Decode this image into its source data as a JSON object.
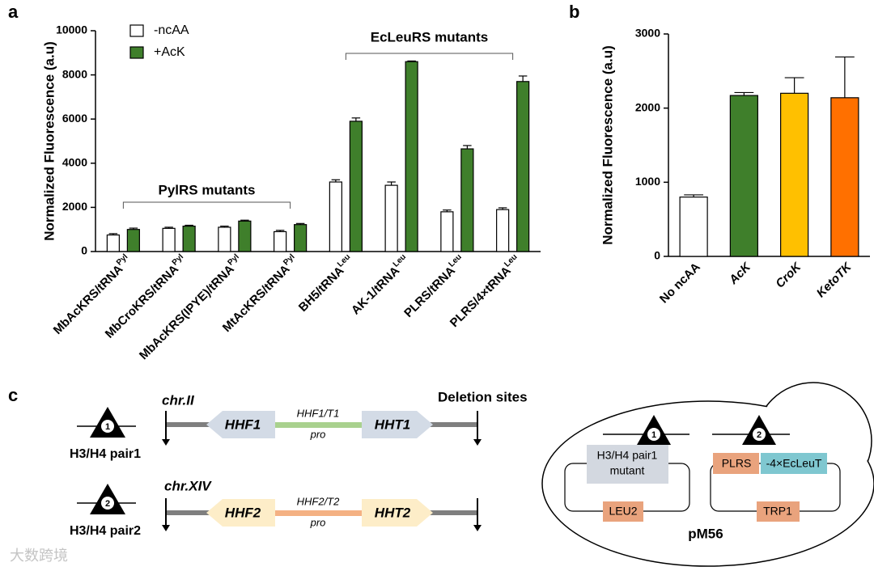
{
  "chart_data": [
    {
      "type": "bar",
      "panel_label": "a",
      "y_label": "Normalized Fluorescence (a.u)",
      "categories": [
        "MbAcKRS/tRNA",
        "MbCroKRS/tRNA",
        "MbAcKRS(IPYE)/tRNA",
        "MtAcKRS/tRNA",
        "BH5/tRNA",
        "AK-1/tRNA",
        "PLRS/tRNA",
        "PLRS/4×tRNA"
      ],
      "category_superscripts": [
        "Pyl",
        "Pyl",
        "Pyl",
        "Pyl",
        "Leu",
        "Leu",
        "Leu",
        "Leu"
      ],
      "series": [
        {
          "name": "-ncAA",
          "color": "#ffffff",
          "values": [
            750,
            1050,
            1100,
            900,
            3150,
            3000,
            1800,
            1900
          ],
          "errors": [
            60,
            50,
            50,
            60,
            100,
            150,
            80,
            80
          ]
        },
        {
          "name": "+AcK",
          "color": "#3f7f2b",
          "values": [
            1000,
            1150,
            1380,
            1220,
            5900,
            8600,
            4650,
            7700
          ],
          "errors": [
            60,
            40,
            40,
            50,
            150,
            30,
            150,
            250
          ]
        }
      ],
      "ylim": [
        0,
        10000
      ],
      "yticks": [
        0,
        2000,
        4000,
        6000,
        8000,
        10000
      ],
      "legend": "top-left",
      "annotations": [
        "PylRS mutants",
        "EcLeuRS mutants"
      ]
    },
    {
      "type": "bar",
      "panel_label": "b",
      "y_label": "Normalized Fluorescence (a.u)",
      "categories": [
        "No ncAA",
        "AcK",
        "CroK",
        "KetoTK"
      ],
      "category_styles": [
        "normal",
        "italic",
        "italic",
        "italic"
      ],
      "series": [
        {
          "colors": [
            "#ffffff",
            "#3f7f2b",
            "#ffc000",
            "#ff7000"
          ],
          "values": [
            800,
            2170,
            2200,
            2140
          ],
          "errors": [
            30,
            40,
            210,
            550
          ]
        }
      ],
      "ylim": [
        0,
        3000
      ],
      "yticks": [
        0,
        1000,
        2000,
        3000
      ]
    }
  ],
  "diagram": {
    "panel_label": "c",
    "deletion_label": "Deletion sites",
    "pairs": [
      {
        "marker": "1",
        "label": "H3/H4 pair1",
        "chromosome": "chr.II",
        "left_gene": "HHF1",
        "promoter": [
          "HHF1/T1",
          "pro"
        ],
        "right_gene": "HHT1"
      },
      {
        "marker": "2",
        "label": "H3/H4 pair2",
        "chromosome": "chr.XIV",
        "left_gene": "HHF2",
        "promoter": [
          "HHF2/T2",
          "pro"
        ],
        "right_gene": "HHT2"
      }
    ],
    "plasmid": {
      "name": "pM56",
      "cassettes": [
        {
          "marker": "1",
          "parts": [
            "H3/H4 pair1",
            "mutant"
          ],
          "marker_gene": "LEU2"
        },
        {
          "marker": "2",
          "parts": [
            "PLRS",
            "-4×EcLeuT"
          ],
          "marker_gene": "TRP1"
        }
      ]
    }
  },
  "watermark": "大数跨境"
}
